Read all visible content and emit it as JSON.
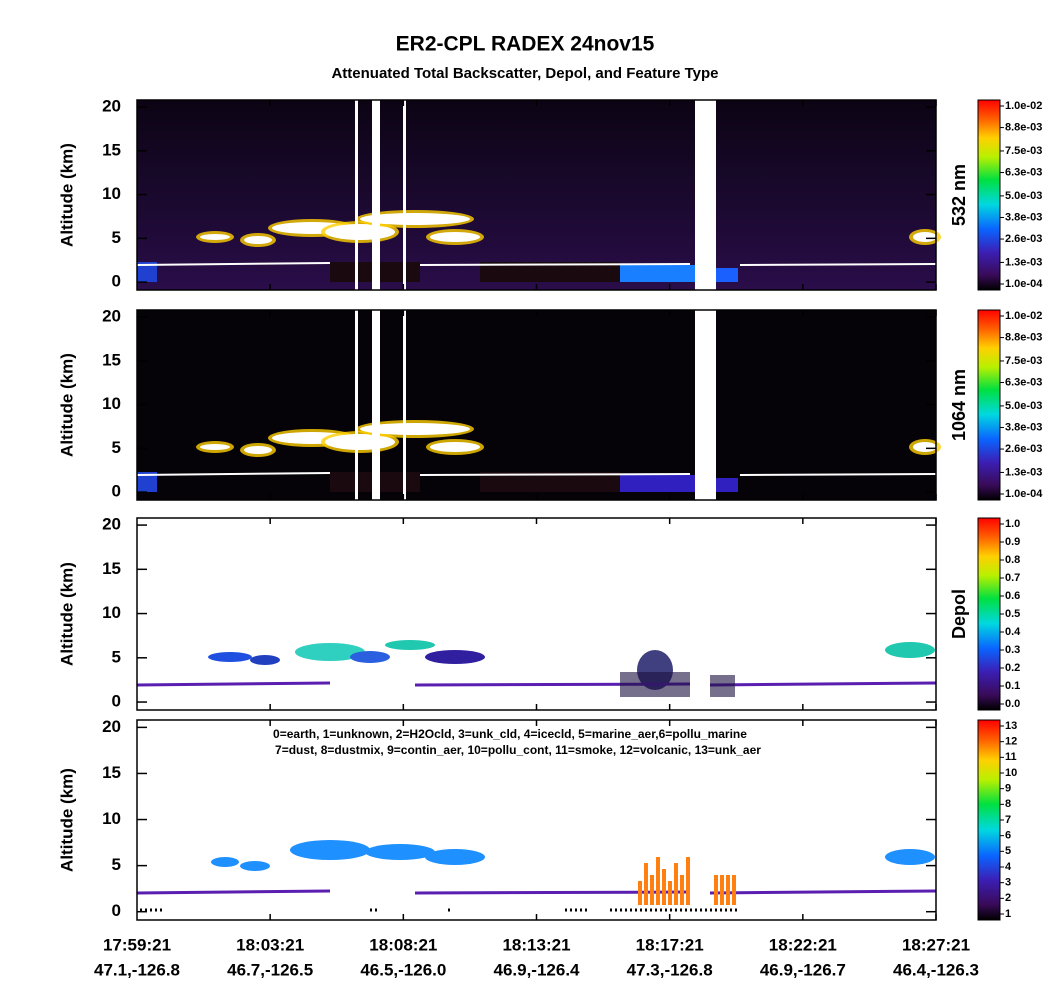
{
  "title": "ER2-CPL RADEX 24nov15",
  "subtitle": "Attenuated Total Backscatter, Depol, and Feature Type",
  "chart_data": [
    {
      "type": "heatmap",
      "ylabel": "Altitude (km)",
      "ylim": [
        -0.9,
        20.8
      ],
      "yticks": [
        0,
        5,
        10,
        15,
        20
      ],
      "colorbar": {
        "label": "532 nm",
        "ticks": [
          {
            "value": 0.0001,
            "label": "1.0e-04"
          },
          {
            "value": 0.0013,
            "label": "1.3e-03"
          },
          {
            "value": 0.0026,
            "label": "2.6e-03"
          },
          {
            "value": 0.0038,
            "label": "3.8e-03"
          },
          {
            "value": 0.005,
            "label": "5.0e-03"
          },
          {
            "value": 0.0063,
            "label": "6.3e-03"
          },
          {
            "value": 0.0075,
            "label": "7.5e-03"
          },
          {
            "value": 0.0088,
            "label": "8.8e-03"
          },
          {
            "value": 0.01,
            "label": "1.0e-02"
          }
        ]
      }
    },
    {
      "type": "heatmap",
      "ylabel": "Altitude (km)",
      "ylim": [
        -0.9,
        20.8
      ],
      "yticks": [
        0,
        5,
        10,
        15,
        20
      ],
      "colorbar": {
        "label": "1064 nm",
        "ticks": [
          {
            "value": 0.0001,
            "label": "1.0e-04"
          },
          {
            "value": 0.0013,
            "label": "1.3e-03"
          },
          {
            "value": 0.0026,
            "label": "2.6e-03"
          },
          {
            "value": 0.0038,
            "label": "3.8e-03"
          },
          {
            "value": 0.005,
            "label": "5.0e-03"
          },
          {
            "value": 0.0063,
            "label": "6.3e-03"
          },
          {
            "value": 0.0075,
            "label": "7.5e-03"
          },
          {
            "value": 0.0088,
            "label": "8.8e-03"
          },
          {
            "value": 0.01,
            "label": "1.0e-02"
          }
        ]
      }
    },
    {
      "type": "heatmap",
      "ylabel": "Altitude (km)",
      "ylim": [
        -0.9,
        20.8
      ],
      "yticks": [
        0,
        5,
        10,
        15,
        20
      ],
      "colorbar": {
        "label": "Depol",
        "ticks": [
          {
            "value": 0,
            "label": "0.0"
          },
          0.1,
          0.2,
          0.3,
          0.4,
          0.5,
          0.6,
          0.7,
          0.8,
          0.9,
          {
            "value": 1,
            "label": "1.0"
          }
        ]
      }
    },
    {
      "type": "heatmap",
      "ylabel": "Altitude (km)",
      "ylim": [
        -0.9,
        20.8
      ],
      "yticks": [
        0,
        5,
        10,
        15,
        20
      ],
      "annotations": [
        "0=earth, 1=unknown, 2=H2Ocld, 3=unk_cld, 4=icecld, 5=marine_aer,6=pollu_marine",
        "7=dust, 8=dustmix, 9=contin_aer, 10=pollu_cont, 11=smoke, 12=volcanic, 13=unk_aer"
      ],
      "colorbar": {
        "ticks": [
          1,
          2,
          3,
          4,
          5,
          6,
          7,
          8,
          9,
          10,
          11,
          12,
          13
        ]
      },
      "categories": [
        "17:59:21",
        "18:03:21",
        "18:08:21",
        "18:13:21",
        "18:17:21",
        "18:22:21",
        "18:27:21"
      ],
      "coordinates": [
        "47.1,-126.8",
        "46.7,-126.5",
        "46.5,-126.0",
        "46.9,-126.4",
        "47.3,-126.8",
        "46.9,-126.7",
        "46.4,-126.3"
      ]
    }
  ]
}
